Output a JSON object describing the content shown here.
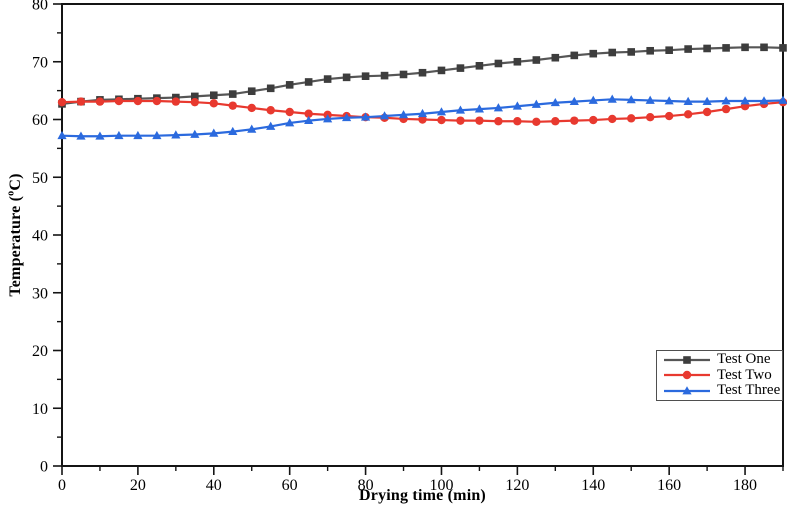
{
  "figure": {
    "background": "#ffffff",
    "axis_color": "#141414"
  },
  "chart_data": {
    "type": "line",
    "title": "",
    "xlabel": "Drying time (min)",
    "ylabel": "Temperature (°C)",
    "ylabel_parts": {
      "prefix": "Temperature (",
      "sup": "o",
      "suffix": "C)"
    },
    "xlim": [
      0,
      190
    ],
    "ylim": [
      0,
      80
    ],
    "x_major_ticks": [
      0,
      20,
      40,
      60,
      80,
      100,
      120,
      140,
      160,
      180
    ],
    "x_minor_step": 10,
    "y_major_ticks": [
      0,
      10,
      20,
      30,
      40,
      50,
      60,
      70,
      80
    ],
    "y_minor_step": 5,
    "grid": false,
    "legend_position": "inside-lower-right",
    "x": [
      0,
      5,
      10,
      15,
      20,
      25,
      30,
      35,
      40,
      45,
      50,
      55,
      60,
      65,
      70,
      75,
      80,
      85,
      90,
      95,
      100,
      105,
      110,
      115,
      120,
      125,
      130,
      135,
      140,
      145,
      150,
      155,
      160,
      165,
      170,
      175,
      180,
      185,
      190
    ],
    "series": [
      {
        "name": "Test One",
        "marker": "square",
        "line_color": "#565656",
        "marker_color": "#3d3d3d",
        "values": [
          62.7,
          63.1,
          63.4,
          63.5,
          63.6,
          63.7,
          63.8,
          64.0,
          64.2,
          64.4,
          64.9,
          65.4,
          66.0,
          66.5,
          67.0,
          67.3,
          67.5,
          67.6,
          67.8,
          68.1,
          68.5,
          68.9,
          69.3,
          69.7,
          70.0,
          70.3,
          70.7,
          71.1,
          71.4,
          71.6,
          71.7,
          71.9,
          72.0,
          72.2,
          72.3,
          72.4,
          72.5,
          72.5,
          72.4
        ]
      },
      {
        "name": "Test Two",
        "marker": "circle",
        "line_color": "#e8392f",
        "marker_color": "#e8392f",
        "values": [
          63.0,
          63.1,
          63.1,
          63.2,
          63.2,
          63.2,
          63.1,
          63.0,
          62.8,
          62.4,
          62.0,
          61.6,
          61.3,
          61.0,
          60.8,
          60.6,
          60.4,
          60.3,
          60.1,
          60.0,
          59.9,
          59.8,
          59.8,
          59.7,
          59.7,
          59.6,
          59.7,
          59.8,
          59.9,
          60.1,
          60.2,
          60.4,
          60.6,
          60.9,
          61.3,
          61.8,
          62.3,
          62.7,
          63.0
        ]
      },
      {
        "name": "Test Three",
        "marker": "triangle-up",
        "line_color": "#2b6ade",
        "marker_color": "#2b6ade",
        "values": [
          57.2,
          57.1,
          57.1,
          57.2,
          57.2,
          57.2,
          57.3,
          57.4,
          57.6,
          57.9,
          58.3,
          58.8,
          59.4,
          59.8,
          60.1,
          60.3,
          60.4,
          60.6,
          60.8,
          61.0,
          61.3,
          61.6,
          61.8,
          62.0,
          62.3,
          62.6,
          62.9,
          63.1,
          63.3,
          63.5,
          63.4,
          63.3,
          63.2,
          63.1,
          63.1,
          63.2,
          63.2,
          63.2,
          63.3
        ]
      }
    ]
  }
}
